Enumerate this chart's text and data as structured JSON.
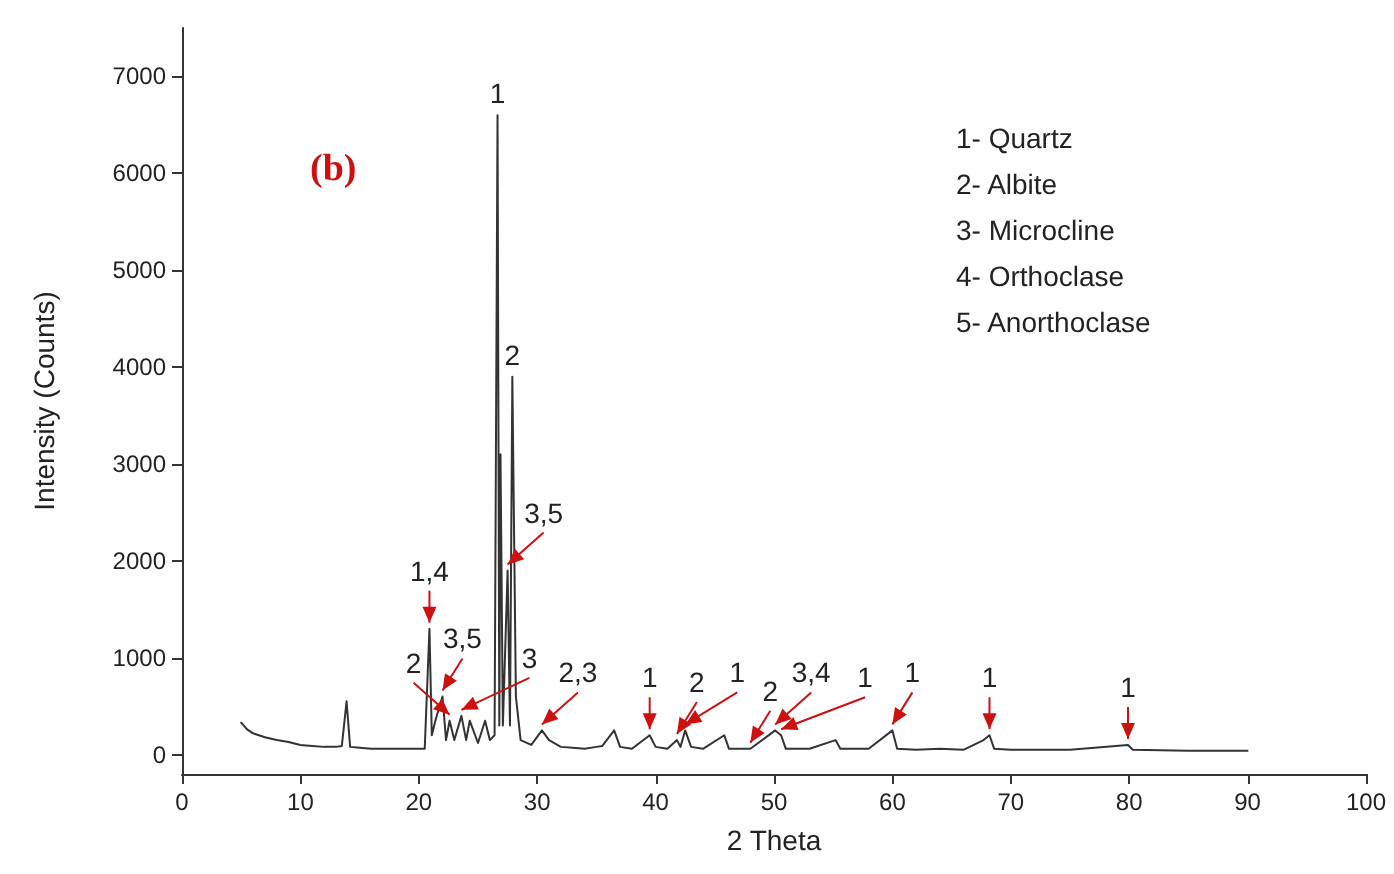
{
  "chart_data": {
    "type": "line",
    "title": "(b)",
    "xlabel": "2 Theta",
    "ylabel": "Intensity (Counts)",
    "x": [
      5,
      5.5,
      6,
      7,
      8,
      9,
      10,
      11,
      12,
      13,
      13.5,
      13.9,
      14.2,
      15,
      16,
      18,
      20,
      20.5,
      20.9,
      21.1,
      21.4,
      22,
      22.3,
      22.6,
      23,
      23.6,
      24,
      24.3,
      25,
      25.6,
      26,
      26.4,
      26.65,
      26.8,
      26.9,
      27.1,
      27.5,
      27.7,
      27.9,
      28.2,
      28.6,
      29.5,
      30.4,
      31,
      32,
      33,
      34,
      35,
      35.5,
      36.5,
      37,
      38,
      39.5,
      40,
      41,
      41.8,
      42.1,
      42.5,
      43,
      44,
      45.8,
      46.2,
      48,
      50.1,
      50.6,
      51,
      53,
      55.2,
      55.6,
      58,
      60,
      60.4,
      62,
      64,
      66,
      67.7,
      68.2,
      68.6,
      70,
      75,
      79.9,
      80.3,
      85,
      90
    ],
    "series": [
      {
        "color": "#333333",
        "values": [
          330,
          260,
          220,
          180,
          150,
          130,
          100,
          90,
          80,
          80,
          90,
          550,
          80,
          70,
          60,
          60,
          60,
          60,
          1300,
          200,
          350,
          600,
          150,
          350,
          150,
          400,
          150,
          350,
          120,
          350,
          150,
          200,
          6600,
          300,
          3100,
          300,
          1900,
          300,
          3900,
          600,
          150,
          100,
          250,
          150,
          80,
          70,
          60,
          80,
          90,
          250,
          80,
          60,
          200,
          80,
          60,
          150,
          80,
          250,
          80,
          60,
          200,
          60,
          60,
          250,
          200,
          60,
          60,
          150,
          60,
          60,
          250,
          60,
          50,
          60,
          50,
          150,
          200,
          60,
          50,
          50,
          100,
          50,
          40,
          40
        ]
      }
    ],
    "xlim": [
      0,
      100
    ],
    "xticks": [
      0,
      10,
      20,
      30,
      40,
      50,
      60,
      70,
      80,
      90,
      100
    ],
    "ylim": [
      -200,
      7500
    ],
    "yticks": [
      0,
      1000,
      2000,
      3000,
      4000,
      5000,
      6000,
      7000
    ],
    "grid": false,
    "marker": "none",
    "line_style": "solid",
    "annotations": [
      "1- Quartz",
      "2- Albite",
      "3- Microcline",
      "4- Orthoclase",
      "5- Anorthoclase",
      {
        "text": "1",
        "x": 26.65,
        "y": 6600
      },
      {
        "text": "2",
        "x": 27.9,
        "y": 3900
      },
      {
        "text": "1,4",
        "x": 20.9,
        "y": 1300
      },
      {
        "text": "3,5",
        "x": 22,
        "y": 600
      },
      {
        "text": "3,5",
        "x": 27.5,
        "y": 1900
      },
      {
        "text": "2",
        "x": 22.6,
        "y": 350
      },
      {
        "text": "3",
        "x": 23.6,
        "y": 400
      },
      {
        "text": "2,3",
        "x": 30.4,
        "y": 250
      },
      {
        "text": "1",
        "x": 39.5,
        "y": 200
      },
      {
        "text": "2",
        "x": 41.8,
        "y": 150
      },
      {
        "text": "1",
        "x": 42.5,
        "y": 250
      },
      {
        "text": "2",
        "x": 48,
        "y": 60
      },
      {
        "text": "3,4",
        "x": 50.1,
        "y": 250
      },
      {
        "text": "1",
        "x": 50.6,
        "y": 200
      },
      {
        "text": "1",
        "x": 60,
        "y": 250
      },
      {
        "text": "1",
        "x": 68.2,
        "y": 200
      },
      {
        "text": "1",
        "x": 79.9,
        "y": 100
      }
    ]
  }
}
